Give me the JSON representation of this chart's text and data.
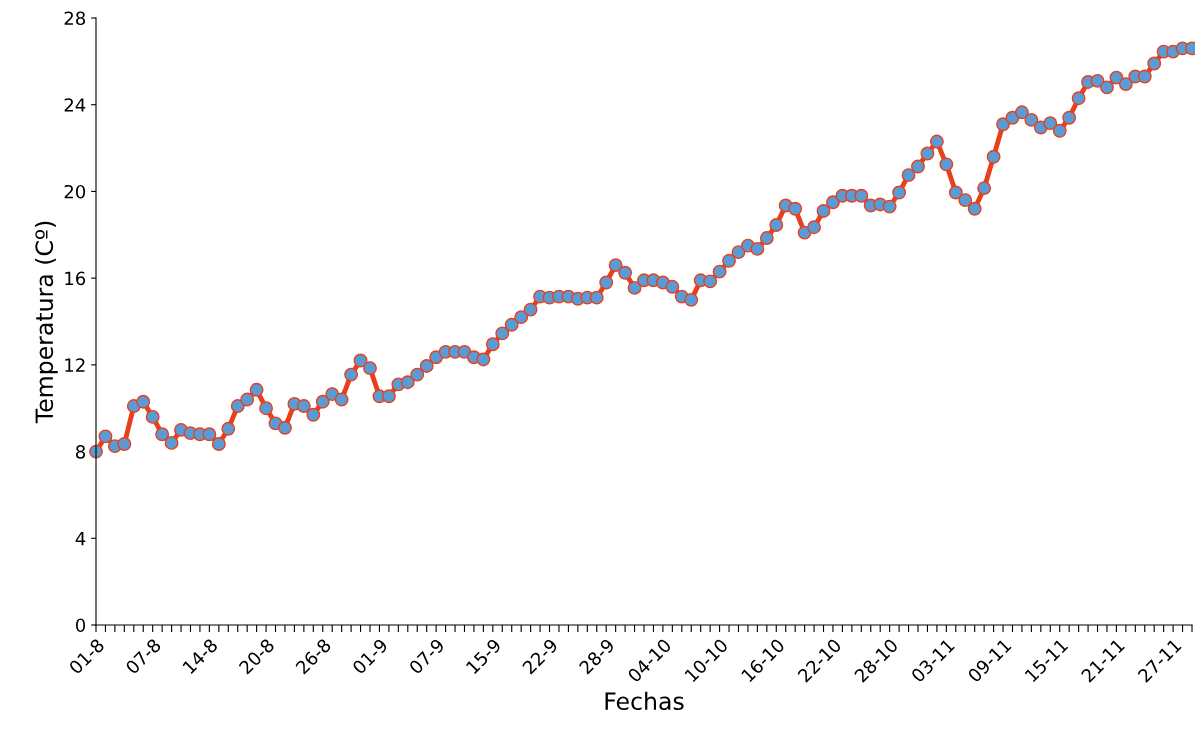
{
  "chart_data": {
    "type": "line",
    "xlabel": "Fechas",
    "ylabel": "Temperatura (Cº)",
    "categories": [
      "01-8",
      null,
      null,
      null,
      null,
      null,
      "07-8",
      null,
      null,
      null,
      null,
      null,
      "14-8",
      null,
      null,
      null,
      null,
      null,
      "20-8",
      null,
      null,
      null,
      null,
      null,
      "26-8",
      null,
      null,
      null,
      null,
      null,
      "01-9",
      null,
      null,
      null,
      null,
      null,
      "07-9",
      null,
      null,
      null,
      null,
      null,
      "15-9",
      null,
      null,
      null,
      null,
      null,
      "22-9",
      null,
      null,
      null,
      null,
      null,
      "28-9",
      null,
      null,
      null,
      null,
      null,
      "04-10",
      null,
      null,
      null,
      null,
      null,
      "10-10",
      null,
      null,
      null,
      null,
      null,
      "16-10",
      null,
      null,
      null,
      null,
      null,
      "22-10",
      null,
      null,
      null,
      null,
      null,
      "28-10",
      null,
      null,
      null,
      null,
      null,
      "03-11",
      null,
      null,
      null,
      null,
      null,
      "09-11",
      null,
      null,
      null,
      null,
      null,
      "15-11",
      null,
      null,
      null,
      null,
      null,
      "21-11",
      null,
      null,
      null,
      null,
      null,
      "27-11",
      null,
      null
    ],
    "series": [
      {
        "color": "#e8401c",
        "values": [
          8.0,
          8.7,
          8.25,
          8.35,
          10.1,
          10.3,
          9.6,
          8.8,
          8.4,
          9.0,
          8.85,
          8.8,
          8.8,
          8.35,
          9.05,
          10.1,
          10.4,
          10.85,
          10.0,
          9.3,
          9.1,
          10.2,
          10.1,
          9.7,
          10.3,
          10.65,
          10.4,
          11.55,
          12.2,
          11.85,
          10.55,
          10.55,
          11.1,
          11.2,
          11.55,
          11.95,
          12.35,
          12.6,
          12.6,
          12.6,
          12.35,
          12.25,
          12.95,
          13.45,
          13.85,
          14.2,
          14.55,
          15.15,
          15.1,
          15.15,
          15.15,
          15.05,
          15.1,
          15.1,
          15.8,
          16.6,
          16.25,
          15.55,
          15.9,
          15.9,
          15.8,
          15.6,
          15.15,
          15.0,
          15.9,
          15.85,
          16.3,
          16.8,
          17.2,
          17.5,
          17.35,
          17.85,
          18.45,
          19.35,
          19.2,
          18.1,
          18.35,
          19.1,
          19.5,
          19.8,
          19.8,
          19.8,
          19.35,
          19.4,
          19.3,
          19.95,
          20.75,
          21.15,
          21.75,
          22.3,
          21.25,
          19.95,
          19.6,
          19.2,
          20.15,
          21.6,
          23.1,
          23.4,
          23.65,
          23.3,
          22.95,
          23.15,
          22.8,
          23.4,
          24.3,
          25.05,
          25.1,
          24.8,
          25.25,
          24.95,
          25.3,
          25.3,
          25.9,
          26.45,
          26.45,
          26.6,
          26.6
        ]
      }
    ],
    "ylim": [
      0,
      28
    ],
    "yticks": [
      0,
      4,
      8,
      12,
      16,
      20,
      24,
      28
    ],
    "grid": false,
    "legend": false,
    "marker": "circle",
    "line_style": "solid"
  }
}
